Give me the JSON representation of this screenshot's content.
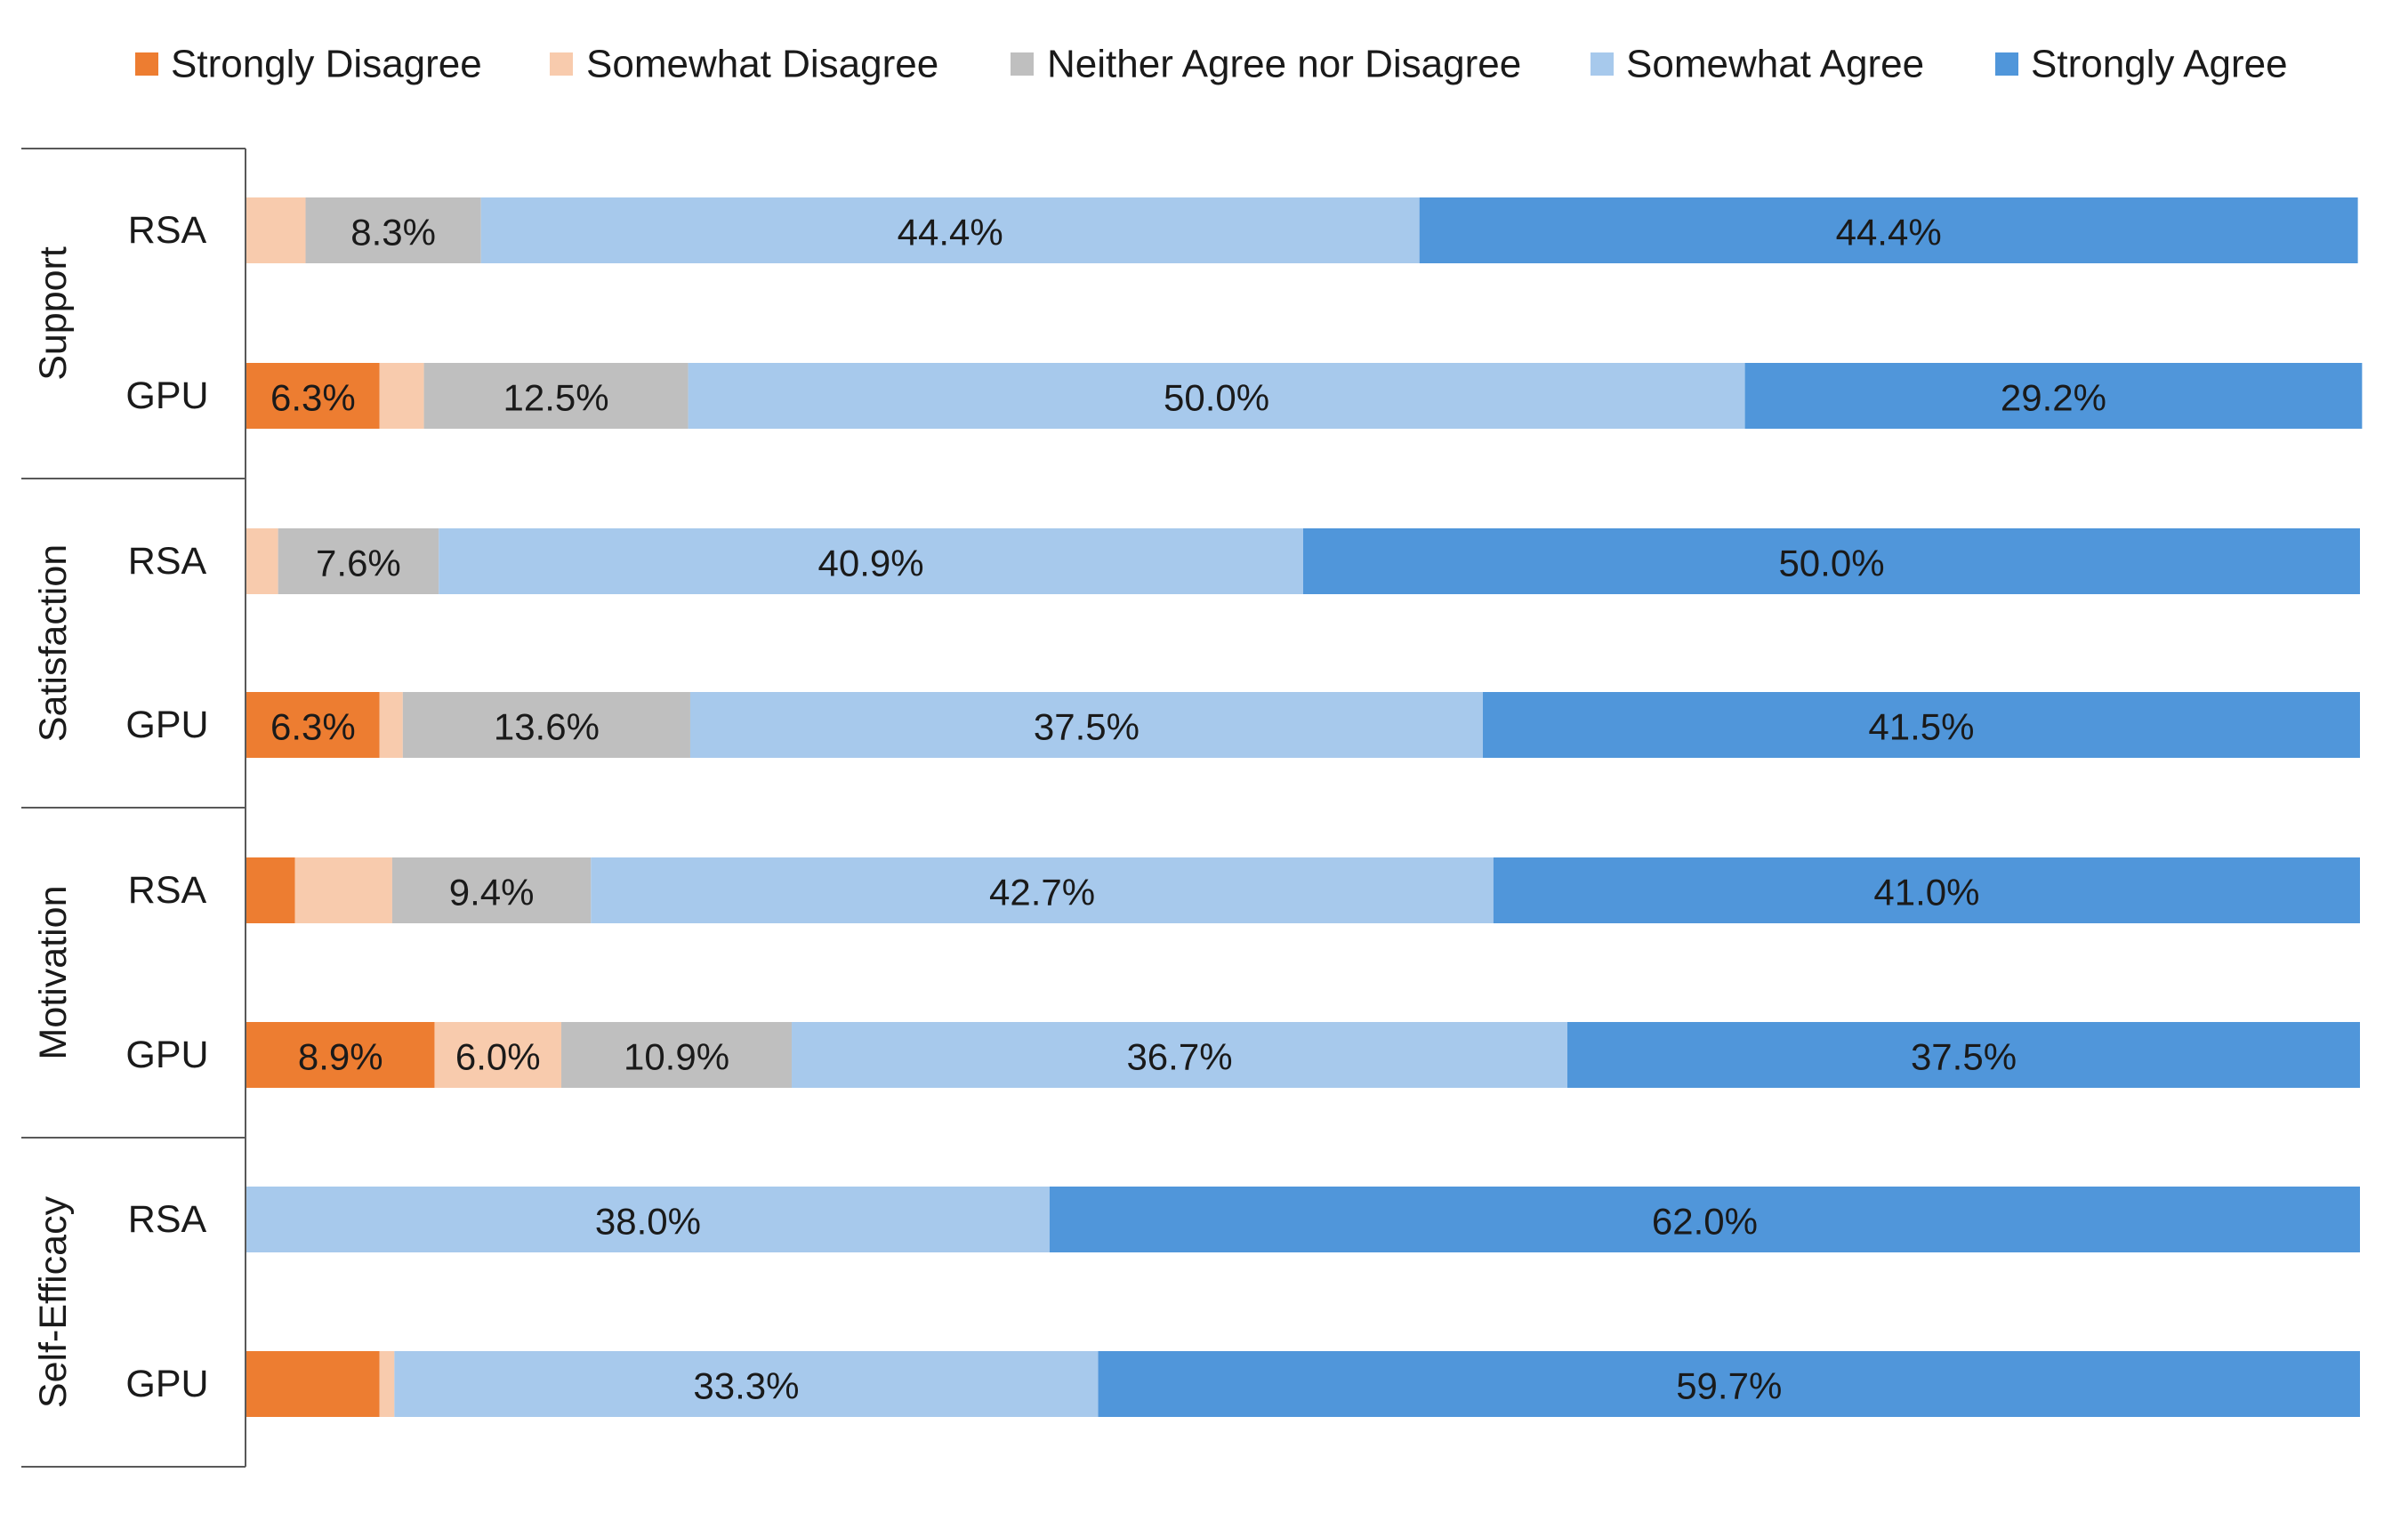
{
  "chart_data": {
    "type": "bar",
    "orientation": "horizontal",
    "stacked": true,
    "normalized": "percent",
    "xlim": [
      0,
      100
    ],
    "grid": false,
    "legend_position": "top",
    "groups": [
      "Support",
      "Satisfaction",
      "Motivation",
      "Self-Efficacy"
    ],
    "categories": [
      "RSA",
      "GPU"
    ],
    "rows": [
      {
        "group": "Support",
        "category": "RSA",
        "values": [
          0,
          2.8,
          8.3,
          44.4,
          44.4
        ],
        "labels": [
          "",
          "",
          "8.3%",
          "44.4%",
          "44.4%"
        ]
      },
      {
        "group": "Support",
        "category": "GPU",
        "values": [
          6.3,
          2.1,
          12.5,
          50.0,
          29.2
        ],
        "labels": [
          "6.3%",
          "",
          "12.5%",
          "50.0%",
          "29.2%"
        ]
      },
      {
        "group": "Satisfaction",
        "category": "RSA",
        "values": [
          0,
          1.5,
          7.6,
          40.9,
          50.0
        ],
        "labels": [
          "",
          "",
          "7.6%",
          "40.9%",
          "50.0%"
        ]
      },
      {
        "group": "Satisfaction",
        "category": "GPU",
        "values": [
          6.3,
          1.1,
          13.6,
          37.5,
          41.5
        ],
        "labels": [
          "6.3%",
          "",
          "13.6%",
          "37.5%",
          "41.5%"
        ]
      },
      {
        "group": "Motivation",
        "category": "RSA",
        "values": [
          2.3,
          4.6,
          9.4,
          42.7,
          41.0
        ],
        "labels": [
          "",
          "",
          "9.4%",
          "42.7%",
          "41.0%"
        ]
      },
      {
        "group": "Motivation",
        "category": "GPU",
        "values": [
          8.9,
          6.0,
          10.9,
          36.7,
          37.5
        ],
        "labels": [
          "8.9%",
          "6.0%",
          "10.9%",
          "36.7%",
          "37.5%"
        ]
      },
      {
        "group": "Self-Efficacy",
        "category": "RSA",
        "values": [
          0,
          0,
          0,
          38.0,
          62.0
        ],
        "labels": [
          "",
          "",
          "",
          "38.0%",
          "62.0%"
        ]
      },
      {
        "group": "Self-Efficacy",
        "category": "GPU",
        "values": [
          6.3,
          0.7,
          0,
          33.3,
          59.7
        ],
        "labels": [
          "",
          "",
          "",
          "33.3%",
          "59.7%"
        ]
      }
    ],
    "series": [
      {
        "name": "Strongly Disagree",
        "color": "#ED7D31"
      },
      {
        "name": "Somewhat Disagree",
        "color": "#F8CBAD"
      },
      {
        "name": "Neither Agree nor Disagree",
        "color": "#BFBFBF"
      },
      {
        "name": "Somewhat Agree",
        "color": "#A7C9EC"
      },
      {
        "name": "Strongly Agree",
        "color": "#5096DA"
      }
    ],
    "axis_line_color": "#595959"
  }
}
